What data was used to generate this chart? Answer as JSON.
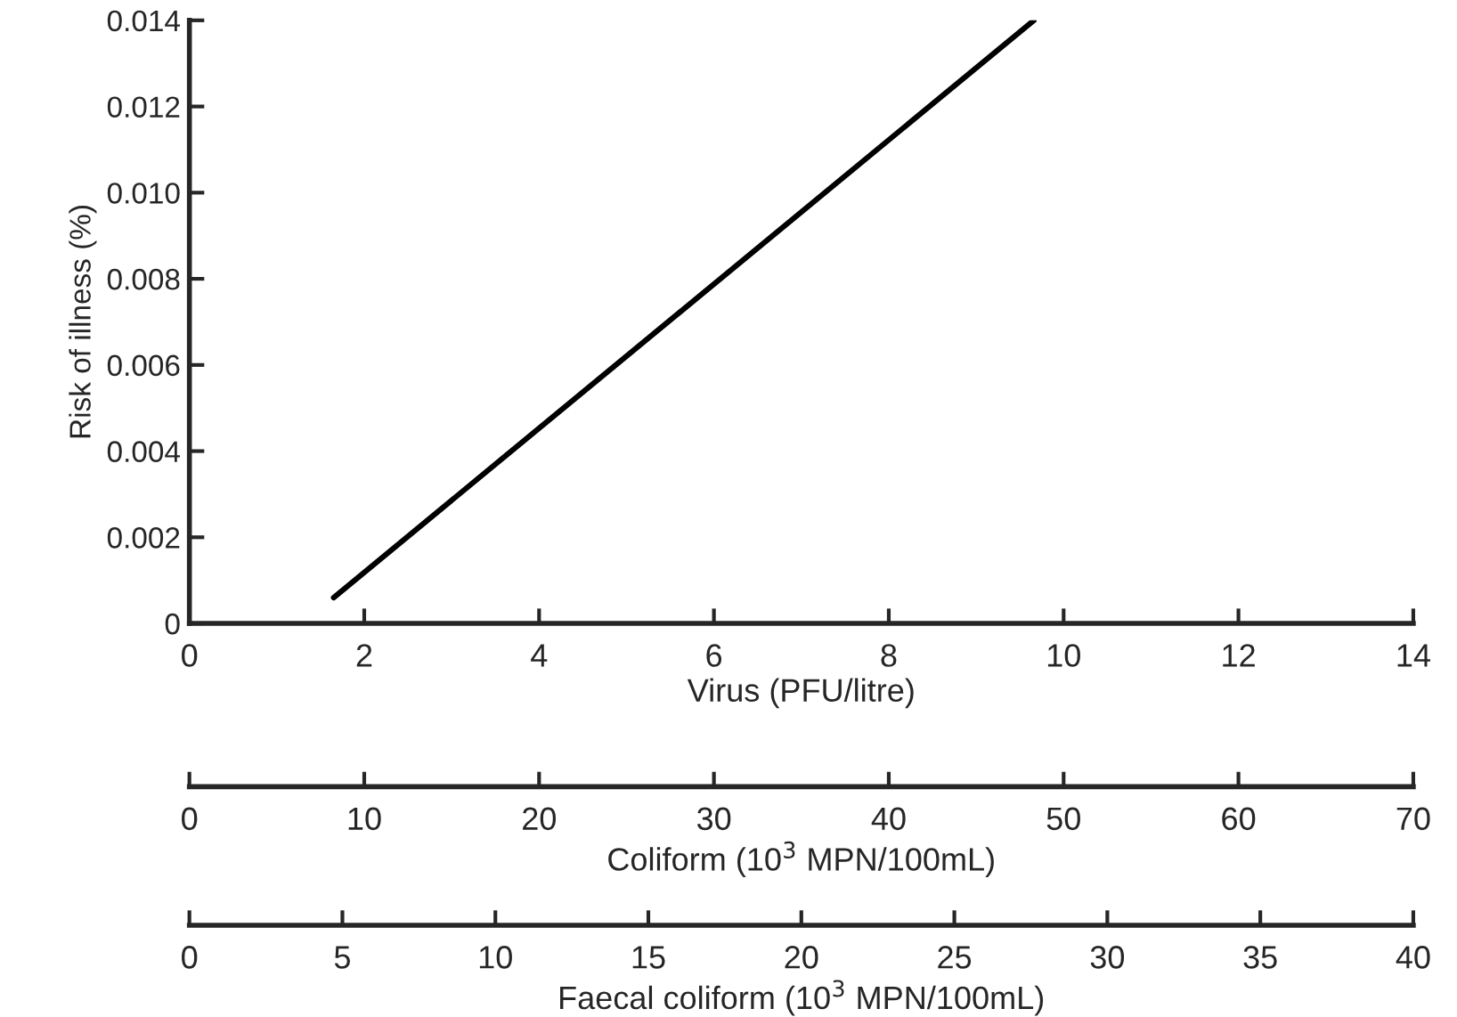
{
  "chart_data": {
    "type": "line",
    "ylabel": "Risk of illness (%)",
    "xlabel": "Virus (PFU/litre)",
    "x2label": "Coliform (10$^{3}$ MPN/100mL)",
    "series": [
      {
        "color": "#000000",
        "x": [
          1.65,
          9.66
        ],
        "values": [
          0.0006,
          0.014
        ]
      }
    ],
    "xlim": [
      0,
      14
    ],
    "xticks": [
      0,
      2,
      4,
      6,
      8,
      10,
      12,
      14
    ],
    "x2lim": [
      0,
      70
    ],
    "x2ticks": [
      0,
      10,
      20,
      30,
      40,
      50,
      60,
      70
    ],
    "ylim": [
      0,
      0.014
    ],
    "yticks": [
      0,
      {
        "value": 0.002,
        "label": "0.002"
      },
      {
        "value": 0.004,
        "label": "0.004"
      },
      {
        "value": 0.006,
        "label": "0.006"
      },
      {
        "value": 0.008,
        "label": "0.008"
      },
      {
        "value": 0.01,
        "label": "0.010"
      },
      {
        "value": 0.012,
        "label": "0.012"
      },
      {
        "value": 0.014,
        "label": "0.014"
      }
    ],
    "annotations": [
      "0",
      "5",
      "10",
      "15",
      "20",
      "25",
      "30",
      "35",
      "40",
      "Faecal coliform (10$^{3}$ MPN/100mL)"
    ],
    "grid": false,
    "legend": false,
    "marker": "none",
    "line_style": "solid"
  }
}
